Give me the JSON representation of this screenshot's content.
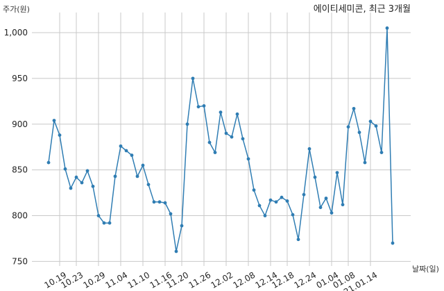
{
  "chart_data": {
    "type": "line",
    "title": "에이티세미콘, 최근 3개월",
    "ylabel": "주가(원)",
    "xlabel": "날짜(일)",
    "ylim": [
      745,
      1022
    ],
    "yticks": [
      750,
      800,
      850,
      900,
      950,
      1000
    ],
    "ytick_labels": [
      "750",
      "800",
      "850",
      "900",
      "950",
      "1,000"
    ],
    "xtick_labels": [
      "10.19",
      "10.23",
      "10.29",
      "11.04",
      "11.10",
      "11.16",
      "11.20",
      "11.26",
      "12.02",
      "12.08",
      "12.14",
      "12.18",
      "12.24",
      "01.04",
      "01.08",
      "21.01.14"
    ],
    "xtick_indices": [
      2,
      5,
      9,
      13,
      17,
      21,
      24,
      28,
      32,
      36,
      40,
      43,
      47,
      51,
      54,
      58
    ],
    "grid": true,
    "color": "#2f7db3",
    "series": [
      {
        "values": [
          858,
          904,
          888,
          851,
          830,
          842,
          836,
          849,
          832,
          800,
          792,
          792,
          843,
          876,
          871,
          866,
          843,
          855,
          834,
          815,
          815,
          814,
          802,
          761,
          789,
          900,
          950,
          919,
          920,
          880,
          869,
          913,
          890,
          886,
          911,
          884,
          862,
          828,
          811,
          800,
          817,
          815,
          820,
          816,
          801,
          774,
          823,
          873,
          842,
          809,
          819,
          803,
          847,
          812,
          897,
          917,
          891,
          858,
          903,
          898,
          869,
          1005,
          770
        ]
      }
    ]
  }
}
